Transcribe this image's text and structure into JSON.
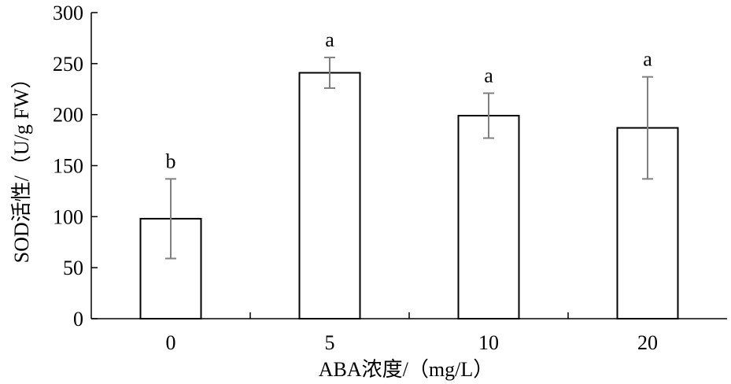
{
  "chart_data": {
    "type": "bar",
    "categories": [
      "0",
      "5",
      "10",
      "20"
    ],
    "values": [
      98,
      241,
      199,
      187
    ],
    "error": [
      39,
      15,
      22,
      50
    ],
    "significance": [
      "b",
      "a",
      "a",
      "a"
    ],
    "xlabel": "ABA浓度/（mg/L）",
    "ylabel": "SOD活性/（U/g FW）",
    "ylim": [
      0,
      300
    ],
    "yticks": [
      "0",
      "50",
      "100",
      "150",
      "200",
      "250",
      "300"
    ],
    "grid": false,
    "colors": {
      "bar_fill": "#ffffff",
      "bar_stroke": "#000000",
      "error_bar": "#808080",
      "axis": "#000000"
    }
  }
}
